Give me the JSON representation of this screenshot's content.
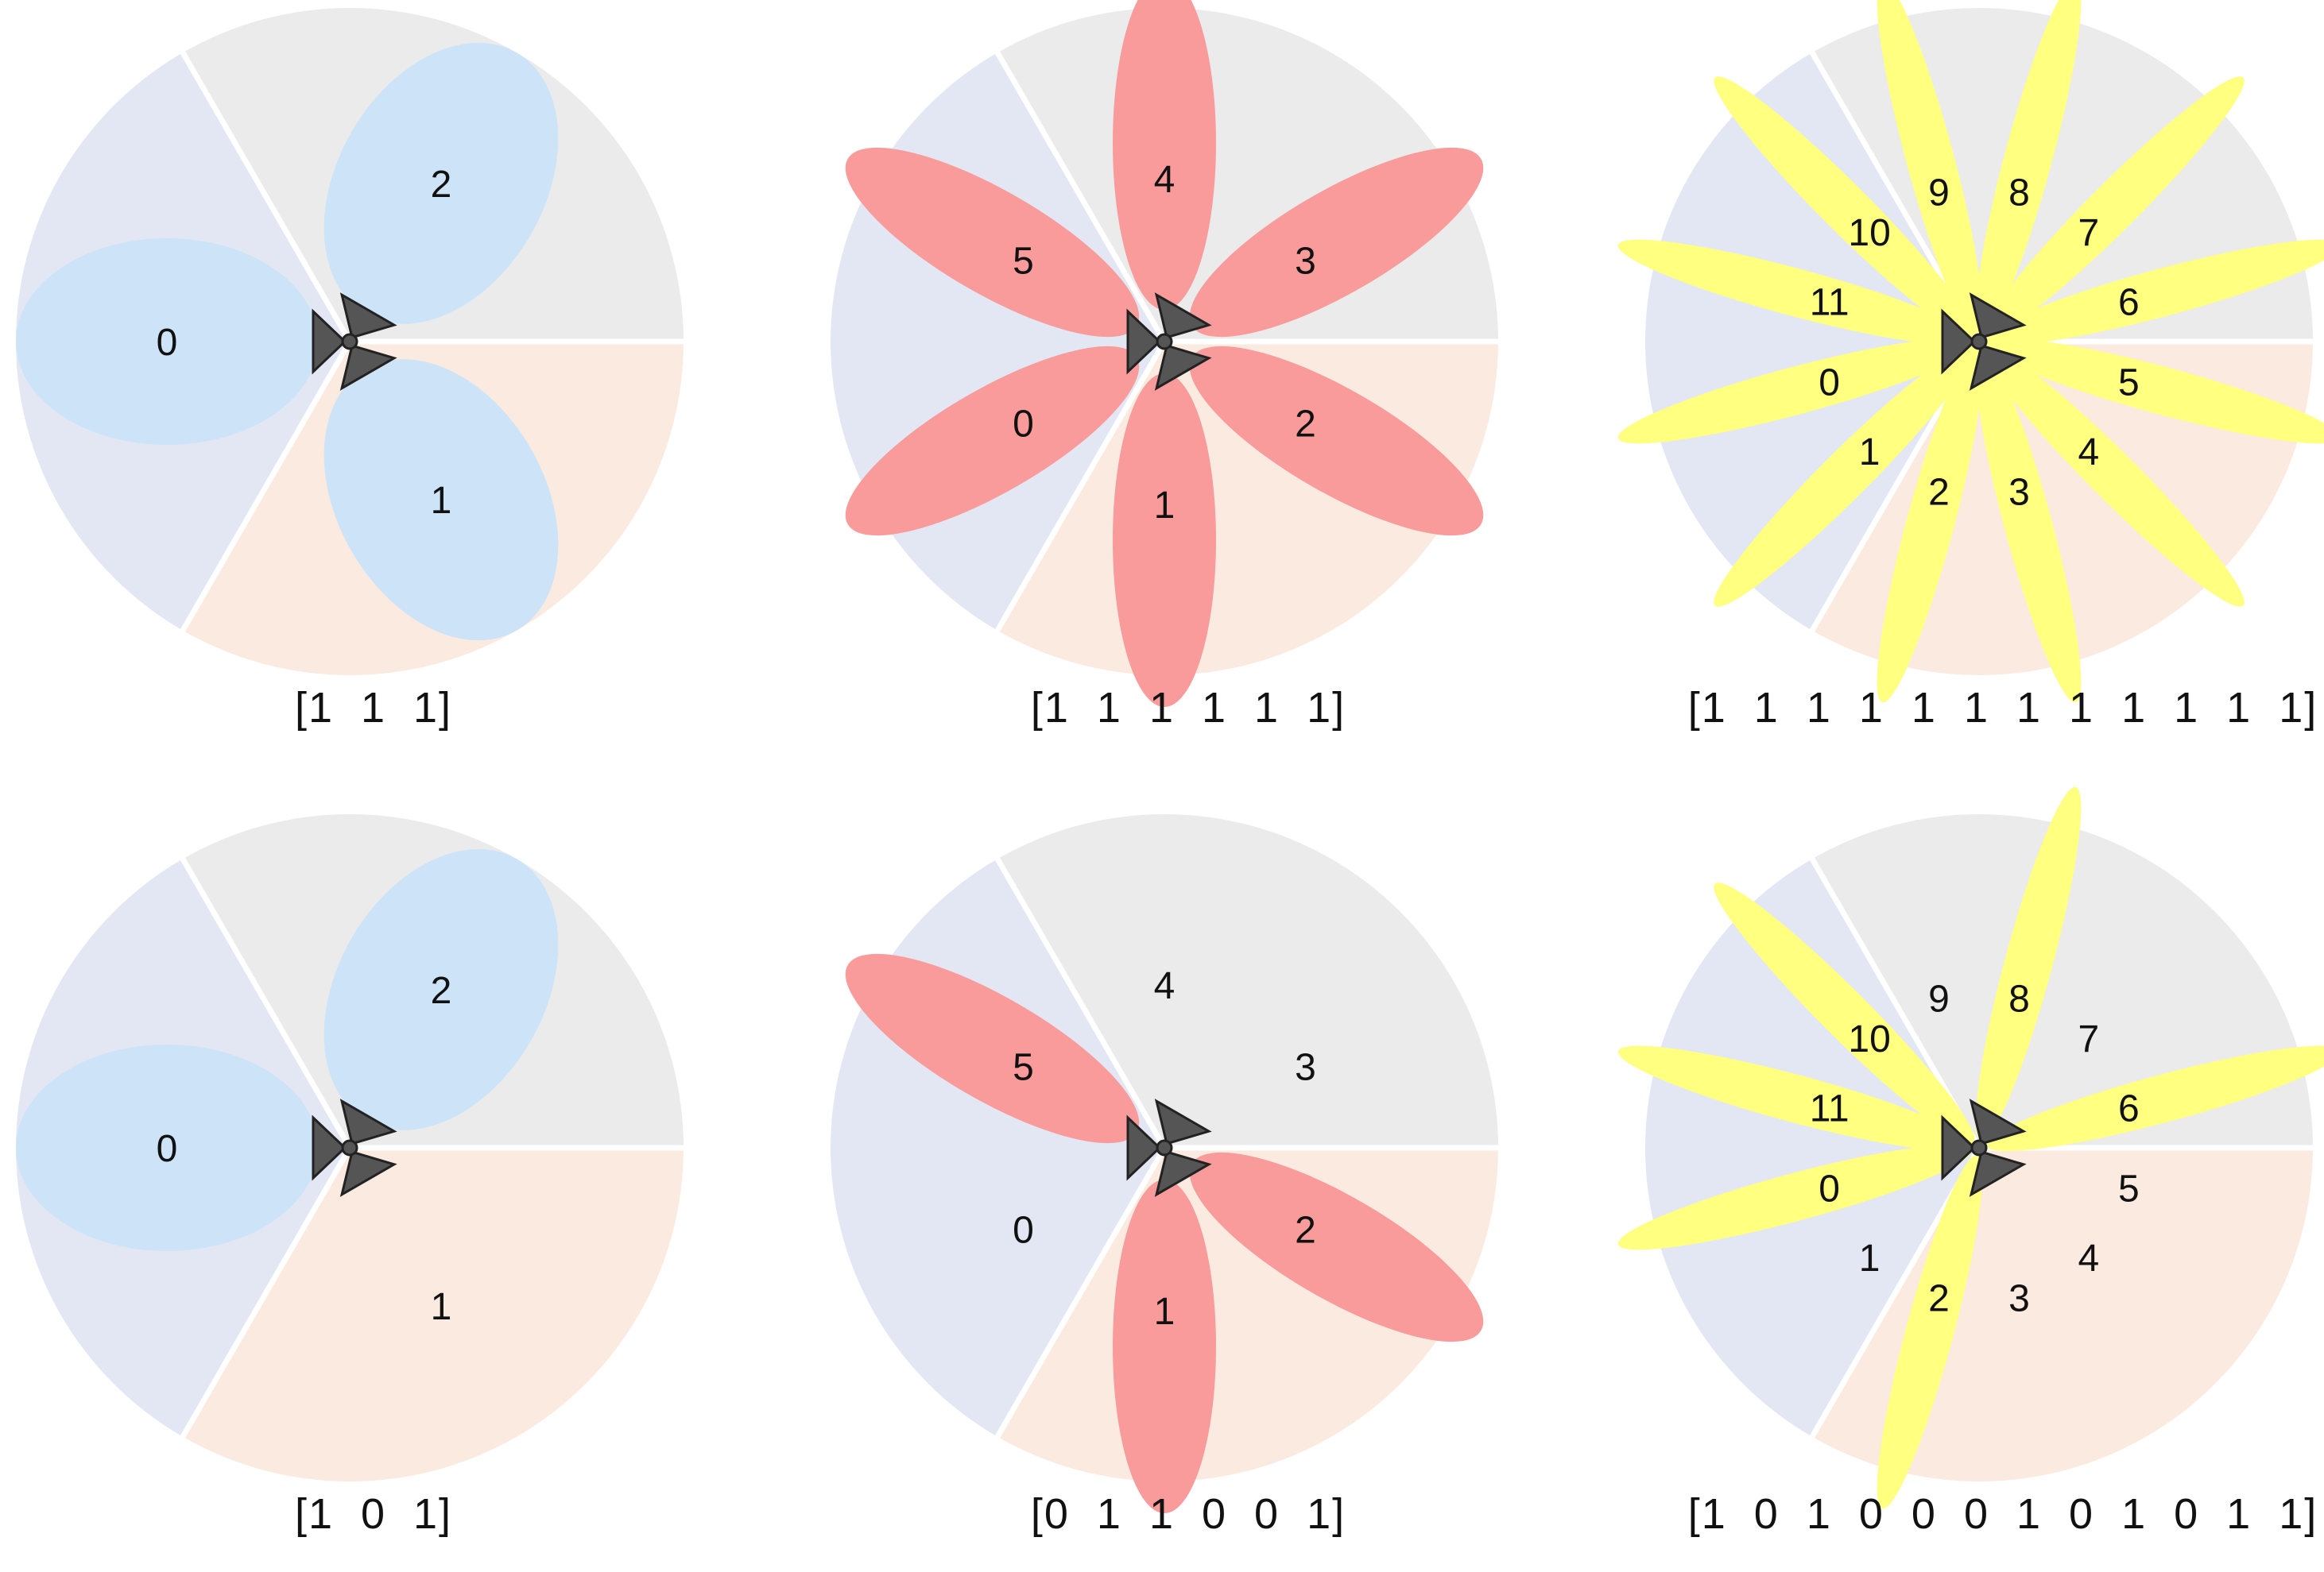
{
  "colors": {
    "sector_a": "#e3e7f3",
    "sector_b": "#ebebeb",
    "sector_c": "#fbeae0",
    "divider": "#ffffff",
    "antenna": "#555555",
    "beam_3": "#cce3f8",
    "beam_6": "#f99b9b",
    "beam_12": "#ffff80"
  },
  "panels": [
    {
      "id": "a",
      "beam_count": 3,
      "beam_color_key": "beam_3",
      "labels": [
        "0",
        "1",
        "2"
      ],
      "active": [
        1,
        1,
        1
      ],
      "caption": "[1  1  1]"
    },
    {
      "id": "b",
      "beam_count": 6,
      "beam_color_key": "beam_6",
      "labels": [
        "0",
        "1",
        "2",
        "3",
        "4",
        "5"
      ],
      "active": [
        1,
        1,
        1,
        1,
        1,
        1
      ],
      "caption": "[1  1  1  1  1  1]"
    },
    {
      "id": "c",
      "beam_count": 12,
      "beam_color_key": "beam_12",
      "labels": [
        "0",
        "1",
        "2",
        "3",
        "4",
        "5",
        "6",
        "7",
        "8",
        "9",
        "10",
        "11"
      ],
      "active": [
        1,
        1,
        1,
        1,
        1,
        1,
        1,
        1,
        1,
        1,
        1,
        1
      ],
      "caption": "[1  1  1  1  1  1  1  1  1  1  1  1]"
    },
    {
      "id": "d",
      "beam_count": 3,
      "beam_color_key": "beam_3",
      "labels": [
        "0",
        "1",
        "2"
      ],
      "active": [
        1,
        0,
        1
      ],
      "caption": "[1  0  1]"
    },
    {
      "id": "e",
      "beam_count": 6,
      "beam_color_key": "beam_6",
      "labels": [
        "0",
        "1",
        "2",
        "3",
        "4",
        "5"
      ],
      "active": [
        0,
        1,
        1,
        0,
        0,
        1
      ],
      "caption": "[0  1  1  0  0  1]"
    },
    {
      "id": "f",
      "beam_count": 12,
      "beam_color_key": "beam_12",
      "labels": [
        "0",
        "1",
        "2",
        "3",
        "4",
        "5",
        "6",
        "7",
        "8",
        "9",
        "10",
        "11"
      ],
      "active": [
        1,
        0,
        1,
        0,
        0,
        0,
        1,
        0,
        1,
        0,
        1,
        1
      ],
      "caption": "[1  0  1  0  0  0  1  0  1  0  1  1]"
    }
  ]
}
